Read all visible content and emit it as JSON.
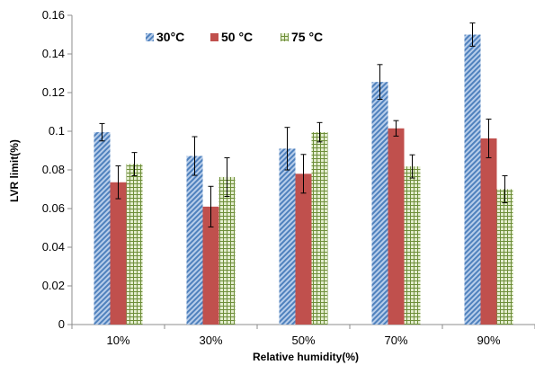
{
  "chart_data": {
    "type": "bar",
    "xlabel": "Relative humidity(%)",
    "ylabel": "LVR limit(%)",
    "ylim": [
      0,
      0.16
    ],
    "yticks": [
      "0",
      "0.02",
      "0.04",
      "0.06",
      "0.08",
      "0.1",
      "0.12",
      "0.14",
      "0.16"
    ],
    "categories": [
      "10%",
      "30%",
      "50%",
      "70%",
      "90%"
    ],
    "legend_position": "top-left",
    "grid": false,
    "error_bars": true,
    "series": [
      {
        "name": "30°C",
        "color": "#4f81bd",
        "pattern": "diagonal-stripes",
        "values": [
          0.0995,
          0.0872,
          0.091,
          0.1255,
          0.15
        ],
        "errors": [
          0.0045,
          0.01,
          0.011,
          0.009,
          0.006
        ]
      },
      {
        "name": "50 °C",
        "color": "#c0504d",
        "pattern": "solid",
        "values": [
          0.0736,
          0.061,
          0.078,
          0.1015,
          0.0963
        ],
        "errors": [
          0.0085,
          0.0105,
          0.01,
          0.004,
          0.01
        ]
      },
      {
        "name": "75 °C",
        "color": "#9bbb59",
        "pattern": "grid",
        "values": [
          0.083,
          0.0763,
          0.0995,
          0.0818,
          0.07
        ],
        "errors": [
          0.006,
          0.01,
          0.005,
          0.006,
          0.007
        ]
      }
    ]
  }
}
